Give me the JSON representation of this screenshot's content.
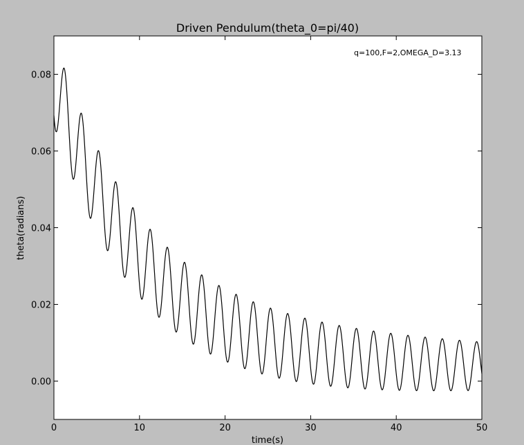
{
  "chart_data": {
    "type": "line",
    "title": "Driven Pendulum(theta_0=pi/40)",
    "xlabel": "time(s)",
    "ylabel": "theta(radians)",
    "annotation": "q=100,F=2,OMEGA_D=3.13",
    "xlim": [
      0,
      50
    ],
    "ylim": [
      -0.01,
      0.09
    ],
    "xticks": [
      0,
      10,
      20,
      30,
      40,
      50
    ],
    "xtick_labels": [
      "0",
      "10",
      "20",
      "30",
      "40",
      "50"
    ],
    "yticks": [
      0.0,
      0.02,
      0.04,
      0.06,
      0.08
    ],
    "ytick_labels": [
      "0.00",
      "0.02",
      "0.04",
      "0.06",
      "0.08"
    ],
    "grid": false,
    "colors": {
      "figure_background": "#bfbfbf",
      "axes_background": "#ffffff",
      "line": "#000000"
    },
    "series": [
      {
        "model": {
          "equilibrium": 0.0032,
          "decay_amplitude": 0.075,
          "decay_rate": 0.094,
          "oscillation_amplitude_start": 0.0115,
          "oscillation_amplitude_end": 0.0063,
          "oscillation_frequency": 3.13,
          "oscillation_phase": -2.25
        },
        "t_start": 0,
        "t_end": 50,
        "samples": 2500
      }
    ]
  }
}
